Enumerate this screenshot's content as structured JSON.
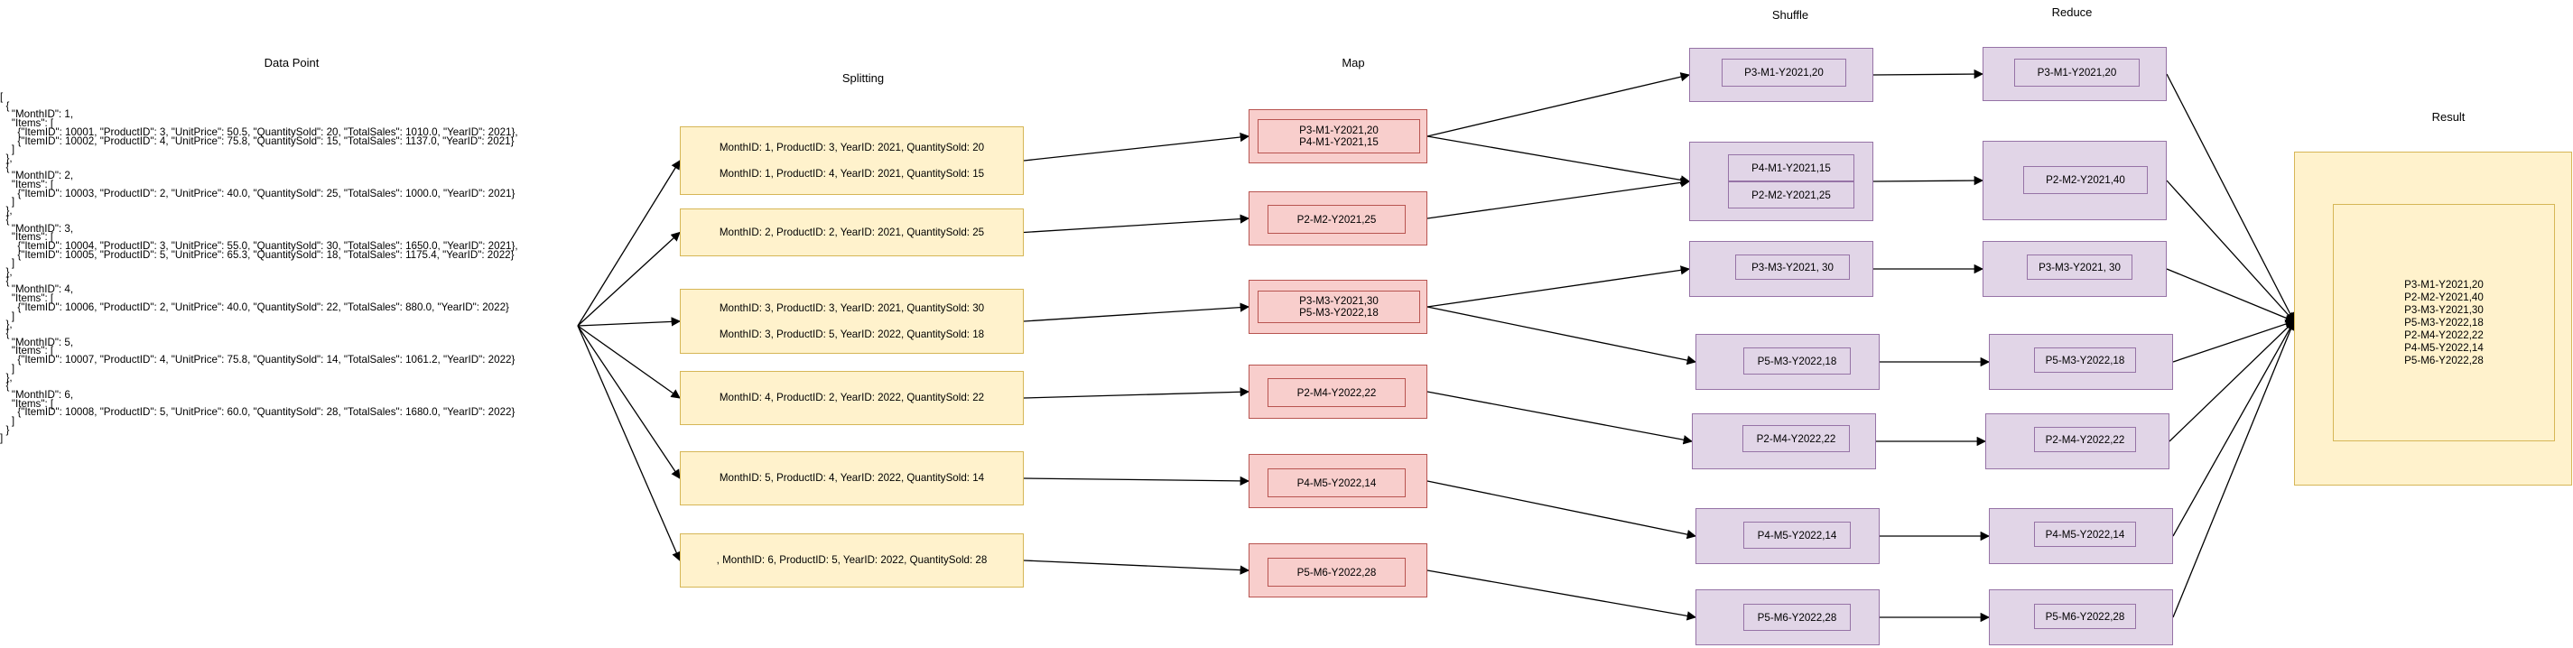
{
  "headers": {
    "data_point": "Data Point",
    "splitting": "Splitting",
    "map": "Map",
    "shuffle": "Shuffle",
    "reduce": "Reduce",
    "result": "Result"
  },
  "data_point_lines": [
    "[",
    "  {",
    "    \"MonthID\": 1,",
    "    \"Items\": [",
    "      {\"ItemID\": 10001, \"ProductID\": 3, \"UnitPrice\": 50.5, \"QuantitySold\": 20, \"TotalSales\": 1010.0, \"YearID\": 2021},",
    "      {\"ItemID\": 10002, \"ProductID\": 4, \"UnitPrice\": 75.8, \"QuantitySold\": 15, \"TotalSales\": 1137.0, \"YearID\": 2021}",
    "    ]",
    "  },",
    "  {",
    "    \"MonthID\": 2,",
    "    \"Items\": [",
    "      {\"ItemID\": 10003, \"ProductID\": 2, \"UnitPrice\": 40.0, \"QuantitySold\": 25, \"TotalSales\": 1000.0, \"YearID\": 2021}",
    "    ]",
    "  },",
    "  {",
    "    \"MonthID\": 3,",
    "    \"Items\": [",
    "      {\"ItemID\": 10004, \"ProductID\": 3, \"UnitPrice\": 55.0, \"QuantitySold\": 30, \"TotalSales\": 1650.0, \"YearID\": 2021},",
    "      {\"ItemID\": 10005, \"ProductID\": 5, \"UnitPrice\": 65.3, \"QuantitySold\": 18, \"TotalSales\": 1175.4, \"YearID\": 2022}",
    "    ]",
    "  },",
    "  {",
    "    \"MonthID\": 4,",
    "    \"Items\": [",
    "      {\"ItemID\": 10006, \"ProductID\": 2, \"UnitPrice\": 40.0, \"QuantitySold\": 22, \"TotalSales\": 880.0, \"YearID\": 2022}",
    "    ]",
    "  },",
    "  {",
    "    \"MonthID\": 5,",
    "    \"Items\": [",
    "      {\"ItemID\": 10007, \"ProductID\": 4, \"UnitPrice\": 75.8, \"QuantitySold\": 14, \"TotalSales\": 1061.2, \"YearID\": 2022}",
    "    ]",
    "  },",
    "  {",
    "    \"MonthID\": 6,",
    "    \"Items\": [",
    "      {\"ItemID\": 10008, \"ProductID\": 5, \"UnitPrice\": 60.0, \"QuantitySold\": 28, \"TotalSales\": 1680.0, \"YearID\": 2022}",
    "    ]",
    "  }",
    "]"
  ],
  "splits": [
    [
      "MonthID: 1, ProductID: 3, YearID: 2021, QuantitySold: 20",
      "MonthID: 1, ProductID: 4, YearID: 2021, QuantitySold: 15"
    ],
    [
      "MonthID: 2, ProductID: 2, YearID: 2021, QuantitySold: 25"
    ],
    [
      "MonthID: 3, ProductID: 3, YearID: 2021, QuantitySold: 30",
      "MonthID: 3, ProductID: 5, YearID: 2022, QuantitySold: 18"
    ],
    [
      "MonthID: 4, ProductID: 2, YearID: 2022, QuantitySold: 22"
    ],
    [
      "MonthID: 5, ProductID: 4, YearID: 2022, QuantitySold: 14"
    ],
    [
      ", MonthID: 6, ProductID: 5, YearID: 2022, QuantitySold: 28"
    ]
  ],
  "map": [
    [
      "P3-M1-Y2021,20",
      "P4-M1-Y2021,15"
    ],
    [
      "P2-M2-Y2021,25"
    ],
    [
      "P3-M3-Y2021,30",
      "P5-M3-Y2022,18"
    ],
    [
      "P2-M4-Y2022,22"
    ],
    [
      "P4-M5-Y2022,14"
    ],
    [
      "P5-M6-Y2022,28"
    ]
  ],
  "shuffle": [
    [
      "P3-M1-Y2021,20"
    ],
    [
      "P4-M1-Y2021,15",
      "P2-M2-Y2021,25"
    ],
    [
      "P3-M3-Y2021, 30"
    ],
    [
      "P5-M3-Y2022,18"
    ],
    [
      "P2-M4-Y2022,22"
    ],
    [
      "P4-M5-Y2022,14"
    ],
    [
      "P5-M6-Y2022,28"
    ]
  ],
  "reduce": [
    "P3-M1-Y2021,20",
    "P2-M2-Y2021,40",
    "P3-M3-Y2021, 30",
    "P5-M3-Y2022,18",
    "P2-M4-Y2022,22",
    "P4-M5-Y2022,14",
    "P5-M6-Y2022,28"
  ],
  "result": [
    "P3-M1-Y2021,20",
    "P2-M2-Y2021,40",
    "P3-M3-Y2021,30",
    "P5-M3-Y2022,18",
    "P2-M4-Y2022,22",
    "P4-M5-Y2022,14",
    "P5-M6-Y2022,28"
  ],
  "colors": {
    "split_fill": "#fff2cc",
    "split_stroke": "#d6b656",
    "map_fill": "#f8cecc",
    "map_stroke": "#b85450",
    "purple_fill": "#e1d5e7",
    "purple_stroke": "#9673a6",
    "result_fill": "#fff2cc",
    "result_stroke": "#d6b656",
    "edge": "#000000"
  }
}
